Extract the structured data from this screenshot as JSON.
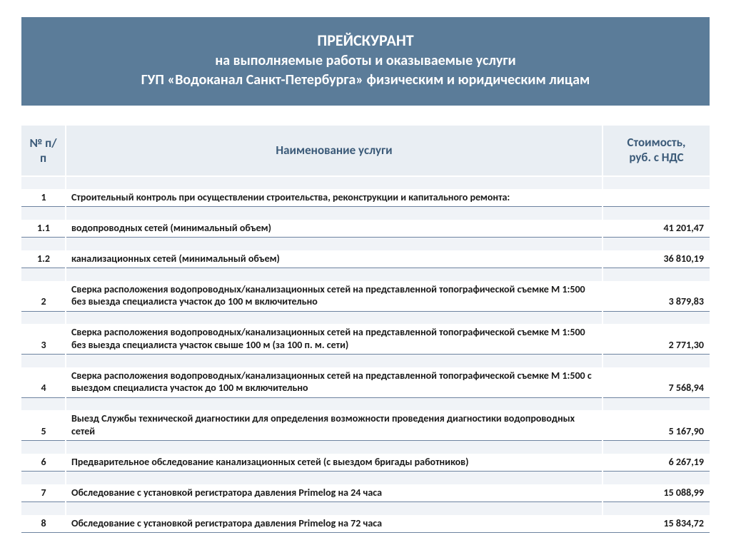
{
  "colors": {
    "header_bg": "#5b7c99",
    "header_text": "#ffffff",
    "thead_bg": "#e9eef3",
    "thead_text": "#3b5a78",
    "spacer_bg": "#f0f3f7",
    "row_border": "#6d83a0",
    "body_text": "#1a1a1a"
  },
  "title": {
    "line1": "ПРЕЙСКУРАНТ",
    "line2": "на выполняемые работы и оказываемые услуги",
    "line3": "ГУП «Водоканал Санкт-Петербурга» физическим и юридическим лицам"
  },
  "columns": {
    "num": "№ п/п",
    "name": "Наименование услуги",
    "price_l1": "Стоимость,",
    "price_l2": "руб. с НДС"
  },
  "rows": [
    {
      "num": "1",
      "name": "Строительный контроль при осуществлении строительства, реконструкции и капитального ремонта:",
      "price": ""
    },
    {
      "num": "1.1",
      "name": "водопроводных сетей (минимальный объем)",
      "price": "41 201,47"
    },
    {
      "num": "1.2",
      "name": "канализационных сетей (минимальный объем)",
      "price": "36 810,19"
    },
    {
      "num": "2",
      "name": "Сверка расположения водопроводных/канализационных сетей на представленной топографической съемке М 1:500 без выезда специалиста участок до 100 м включительно",
      "price": "3 879,83"
    },
    {
      "num": "3",
      "name": "Сверка расположения водопроводных/канализационных сетей на представленной топографической съемке М 1:500 без выезда специалиста участок свыше 100 м (за 100 п. м. сети)",
      "price": "2 771,30"
    },
    {
      "num": "4",
      "name": "Сверка расположения водопроводных/канализационных сетей на представленной топографической съемке М 1:500 с выездом специалиста участок до 100 м включительно",
      "price": "7 568,94"
    },
    {
      "num": "5",
      "name": "Выезд Службы технической диагностики для определения возможности проведения диагностики водопроводных сетей",
      "price": "5 167,90"
    },
    {
      "num": "6",
      "name": "Предварительное обследование канализационных сетей (с выездом бригады работников)",
      "price": "6 267,19"
    },
    {
      "num": "7",
      "name": "Обследование с установкой регистратора давления Primelog на 24 часа",
      "price": "15 088,99"
    },
    {
      "num": "8",
      "name": "Обследование с установкой регистратора давления Primelog на 72 часа",
      "price": "15 834,72"
    }
  ]
}
